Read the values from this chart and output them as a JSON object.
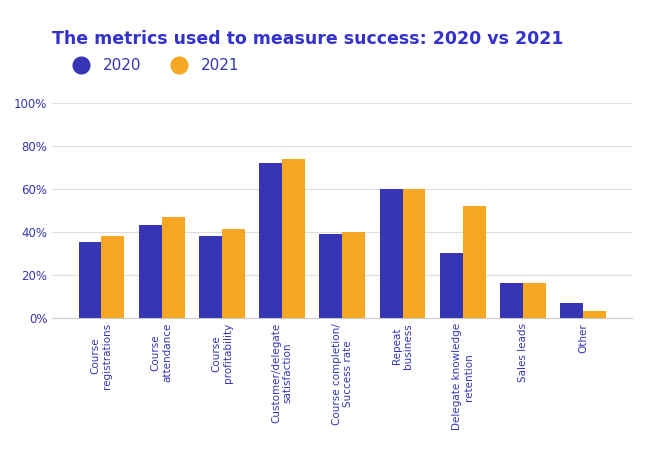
{
  "title": "The metrics used to measure success: 2020 vs 2021",
  "title_color": "#3333cc",
  "title_fontsize": 12.5,
  "categories": [
    "Course\nregistrations",
    "Course\nattendance",
    "Course\nprofitability",
    "Customer/delegate\nsatisfaction",
    "Course completion/\nSuccess rate",
    "Repeat\nbusiness",
    "Delegate knowledge\nretention",
    "Sales leads",
    "Other"
  ],
  "values_2020": [
    35,
    43,
    38,
    72,
    39,
    60,
    30,
    16,
    7
  ],
  "values_2021": [
    38,
    47,
    41,
    74,
    40,
    60,
    52,
    16,
    3
  ],
  "color_2020": "#3535b5",
  "color_2021": "#f5a623",
  "legend_labels": [
    "2020",
    "2021"
  ],
  "ylim": [
    0,
    100
  ],
  "yticks": [
    0,
    20,
    40,
    60,
    80,
    100
  ],
  "ytick_labels": [
    "0%",
    "20%",
    "40%",
    "60%",
    "80%",
    "100%"
  ],
  "background_color": "#ffffff",
  "bar_width": 0.38,
  "legend_fontsize": 11,
  "tick_fontsize": 7.5,
  "grid_color": "#dddddd",
  "label_color": "#3535b5"
}
